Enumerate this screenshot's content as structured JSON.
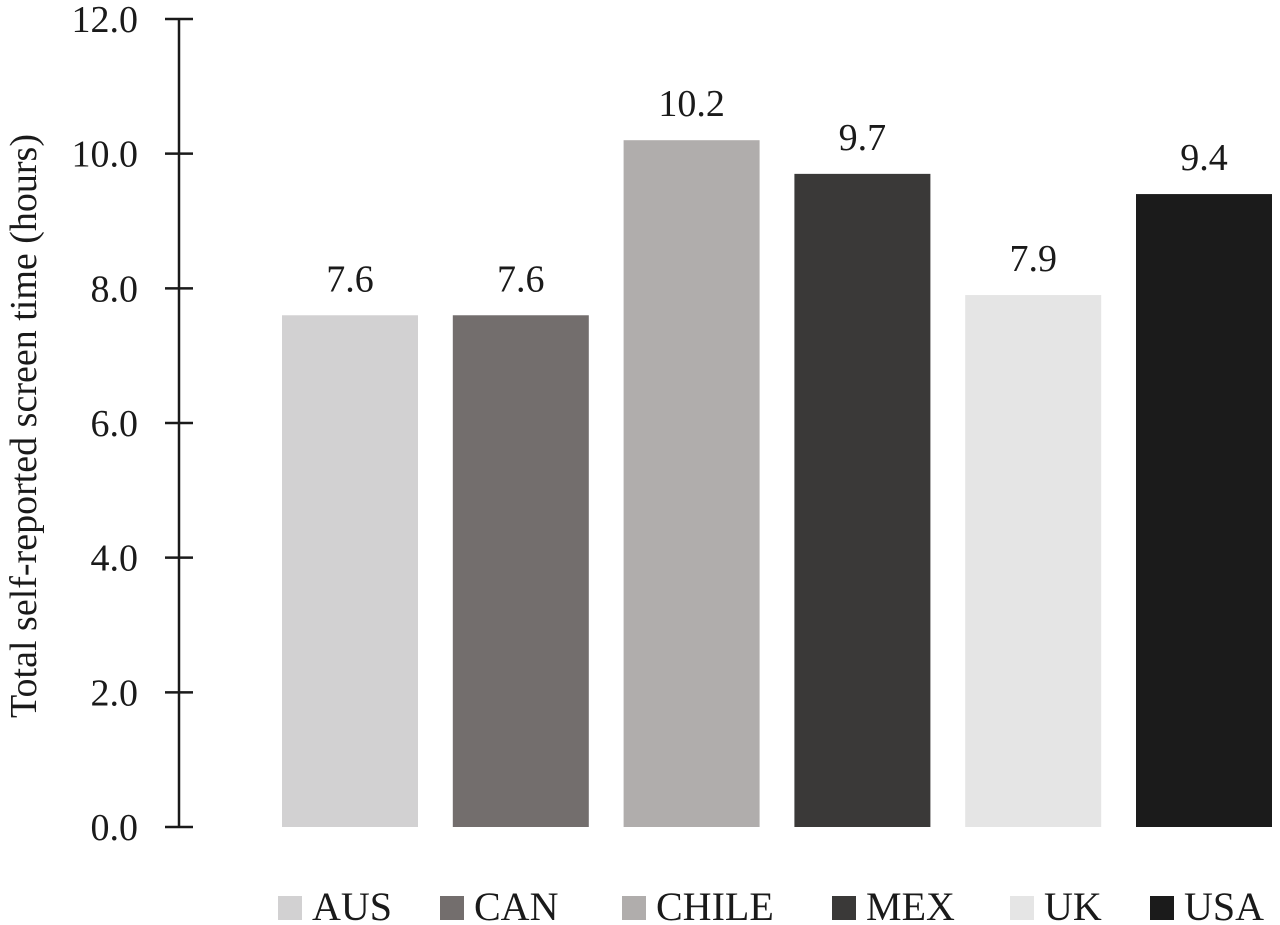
{
  "chart_data": {
    "type": "bar",
    "title": "",
    "xlabel": "",
    "ylabel": "Total self-reported screen time (hours)",
    "ylim": [
      0,
      12
    ],
    "yticks": [
      "0.0",
      "2.0",
      "4.0",
      "6.0",
      "8.0",
      "10.0",
      "12.0"
    ],
    "categories": [
      "AUS",
      "CAN",
      "CHILE",
      "MEX",
      "UK",
      "USA"
    ],
    "values": [
      7.6,
      7.6,
      10.2,
      9.7,
      7.9,
      9.4
    ],
    "data_labels": [
      "7.6",
      "7.6",
      "10.2",
      "9.7",
      "7.9",
      "9.4"
    ],
    "colors": [
      "#d2d1d2",
      "#736e6d",
      "#b0adac",
      "#3a3938",
      "#e5e5e5",
      "#1b1b1b"
    ],
    "legend": {
      "position": "bottom",
      "entries": [
        "AUS",
        "CAN",
        "CHILE",
        "MEX",
        "UK",
        "USA"
      ]
    },
    "grid": false
  }
}
